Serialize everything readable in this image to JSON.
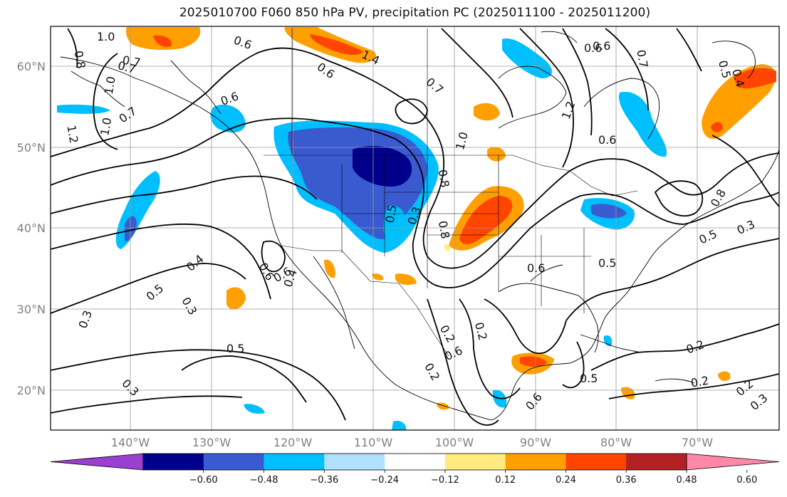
{
  "title": "2025010700 F060 850 hPa PV, precipitation PC (2025011100 - 2025011200)",
  "lat_labels": [
    "60°N",
    "50°N",
    "40°N",
    "30°N",
    "20°N"
  ],
  "lon_labels": [
    "140°W",
    "130°W",
    "120°W",
    "110°W",
    "100°W",
    "90°W",
    "80°W",
    "70°W"
  ],
  "colorbar": {
    "ticks": [
      "−0.60",
      "−0.48",
      "−0.36",
      "−0.24",
      "−0.12",
      "0.12",
      "0.24",
      "0.36",
      "0.48",
      "0.60"
    ],
    "colors": [
      "#9a3fcf",
      "#00008b",
      "#3a5bd0",
      "#00bfff",
      "#b0e0ff",
      "#ffffff",
      "#ffec80",
      "#ffa000",
      "#ff4500",
      "#b22222",
      "#ff88aa"
    ]
  },
  "contour_labels": [
    "1.0",
    "0.6",
    "1.4",
    "0.6",
    "0.7",
    "0.8",
    "0.7",
    "0.6",
    "1.0",
    "0.6",
    "0.7",
    "1.0",
    "1.2",
    "0.7",
    "0.6",
    "1.2",
    "1.0",
    "0.8",
    "0.8",
    "0.6",
    "0.5",
    "0.4",
    "0.5",
    "0.3",
    "0.6",
    "0.6",
    "0.4",
    "0.5",
    "0.3",
    "0.3",
    "0.5",
    "0.5",
    "0.3",
    "0.6",
    "0.5",
    "0.3",
    "0.2",
    "0.6",
    "0.2",
    "0.5",
    "0.4",
    "0.2",
    "0.2",
    "0.2",
    "0.3",
    "0.7",
    "0.6",
    "0.8",
    "0.2"
  ],
  "colors": {
    "land_line": "#000000",
    "grid": "#9a9a9a",
    "contour": "#000000"
  }
}
